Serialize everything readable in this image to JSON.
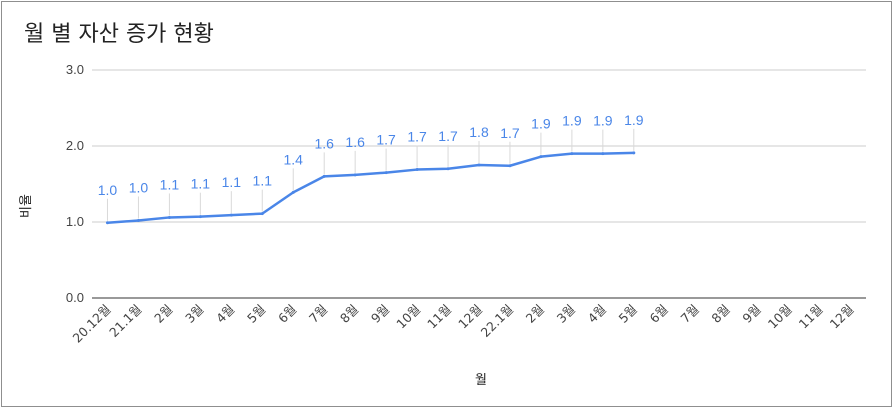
{
  "chart_data": {
    "type": "line",
    "title": "월 별 자산 증가 현황",
    "xlabel": "월",
    "ylabel": "비율",
    "ylim": [
      0,
      3
    ],
    "yticks": [
      "0.0",
      "1.0",
      "2.0",
      "3.0"
    ],
    "grid": true,
    "categories": [
      "20.12월",
      "21.1월",
      "2월",
      "3월",
      "4월",
      "5월",
      "6월",
      "7월",
      "8월",
      "9월",
      "10월",
      "11월",
      "12월",
      "22.1월",
      "2월",
      "3월",
      "4월",
      "5월",
      "6월",
      "7월",
      "8월",
      "9월",
      "10월",
      "11월",
      "12월"
    ],
    "series": [
      {
        "color": "#4a86e8",
        "values": [
          0.99,
          1.02,
          1.06,
          1.07,
          1.09,
          1.11,
          1.39,
          1.6,
          1.62,
          1.65,
          1.69,
          1.7,
          1.75,
          1.74,
          1.86,
          1.9,
          1.9,
          1.91,
          null,
          null,
          null,
          null,
          null,
          null,
          null
        ],
        "labels": [
          "1.0",
          "1.0",
          "1.1",
          "1.1",
          "1.1",
          "1.1",
          "1.4",
          "1.6",
          "1.6",
          "1.7",
          "1.7",
          "1.7",
          "1.8",
          "1.7",
          "1.9",
          "1.9",
          "1.9",
          "1.9",
          "",
          "",
          "",
          "",
          "",
          "",
          ""
        ]
      }
    ]
  }
}
